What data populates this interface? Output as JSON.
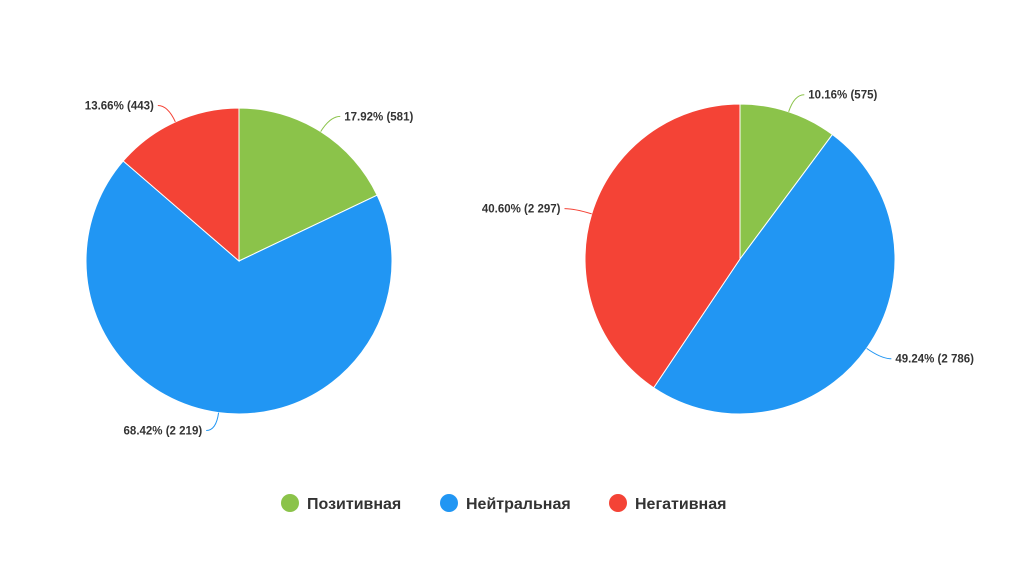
{
  "colors": {
    "positive": "#8BC34A",
    "neutral": "#2196F3",
    "negative": "#F44336"
  },
  "legend": {
    "placement": "bottom-center",
    "items": [
      {
        "label": "Позитивная",
        "color": "#8BC34A",
        "icon": "green-circle-icon"
      },
      {
        "label": "Нейтральная",
        "color": "#2196F3",
        "icon": "blue-circle-icon"
      },
      {
        "label": "Негативная",
        "color": "#F44336",
        "icon": "red-circle-icon"
      }
    ]
  },
  "chart_data": [
    {
      "type": "pie",
      "slices": [
        {
          "name": "Позитивная",
          "percent": 17.92,
          "count": 581,
          "label": "17.92% (581)",
          "color": "#8BC34A"
        },
        {
          "name": "Нейтральная",
          "percent": 68.42,
          "count": 2219,
          "label": "68.42% (2 219)",
          "color": "#2196F3"
        },
        {
          "name": "Негативная",
          "percent": 13.66,
          "count": 443,
          "label": "13.66% (443)",
          "color": "#F44336"
        }
      ]
    },
    {
      "type": "pie",
      "slices": [
        {
          "name": "Позитивная",
          "percent": 10.16,
          "count": 575,
          "label": "10.16% (575)",
          "color": "#8BC34A"
        },
        {
          "name": "Нейтральная",
          "percent": 49.24,
          "count": 2786,
          "label": "49.24% (2 786)",
          "color": "#2196F3"
        },
        {
          "name": "Негативная",
          "percent": 40.6,
          "count": 2297,
          "label": "40.60% (2 297)",
          "color": "#F44336"
        }
      ]
    }
  ]
}
